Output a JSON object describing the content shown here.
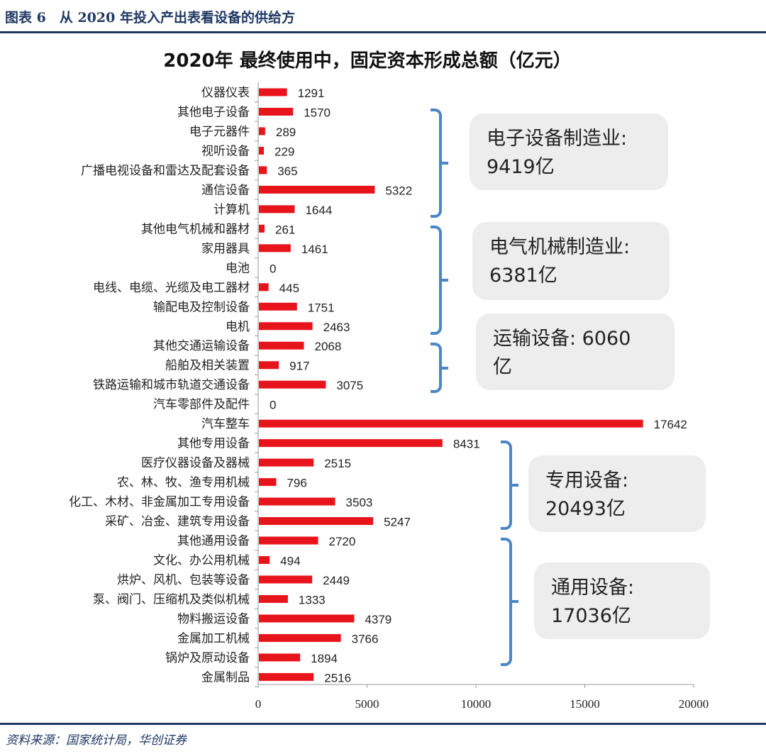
{
  "figure_heading": "图表 6　从 2020 年投入产出表看设备的供给方",
  "source": "资料来源：国家统计局，华创证券",
  "chart_data": {
    "type": "bar",
    "orientation": "horizontal",
    "title": "2020年 最终使用中，固定资本形成总额（亿元）",
    "categories": [
      "仪器仪表",
      "其他电子设备",
      "电子元器件",
      "视听设备",
      "广播电视设备和雷达及配套设备",
      "通信设备",
      "计算机",
      "其他电气机械和器材",
      "家用器具",
      "电池",
      "电线、电缆、光缆及电工器材",
      "输配电及控制设备",
      "电机",
      "其他交通运输设备",
      "船舶及相关装置",
      "铁路运输和城市轨道交通设备",
      "汽车零部件及配件",
      "汽车整车",
      "其他专用设备",
      "医疗仪器设备及器械",
      "农、林、牧、渔专用机械",
      "化工、木材、非金属加工专用设备",
      "采矿、冶金、建筑专用设备",
      "其他通用设备",
      "文化、办公用机械",
      "烘炉、风机、包装等设备",
      "泵、阀门、压缩机及类似机械",
      "物料搬运设备",
      "金属加工机械",
      "锅炉及原动设备",
      "金属制品"
    ],
    "values": [
      1291,
      1570,
      289,
      229,
      365,
      5322,
      1644,
      261,
      1461,
      0,
      445,
      1751,
      2463,
      2068,
      917,
      3075,
      0,
      17642,
      8431,
      2515,
      796,
      3503,
      5247,
      2720,
      494,
      2449,
      1333,
      4379,
      3766,
      1894,
      2516
    ],
    "xlim": [
      0,
      20000
    ],
    "xticks": [
      0,
      5000,
      10000,
      15000,
      20000
    ],
    "bar_color": "#e8141c",
    "grid": false,
    "annotations": [
      {
        "line1": "电子设备制造业:",
        "line2": "9419亿",
        "from": 1,
        "to": 6
      },
      {
        "line1": "电气机械制造业:",
        "line2": "6381亿",
        "from": 7,
        "to": 12
      },
      {
        "line1": "运输设备:  6060",
        "line2": "亿",
        "from": 13,
        "to": 15
      },
      {
        "line1": "专用设备:",
        "line2": "20493亿",
        "from": 18,
        "to": 22
      },
      {
        "line1": "通用设备:",
        "line2": "17036亿",
        "from": 23,
        "to": 29
      }
    ],
    "annotation_color": "#4a86c5"
  }
}
